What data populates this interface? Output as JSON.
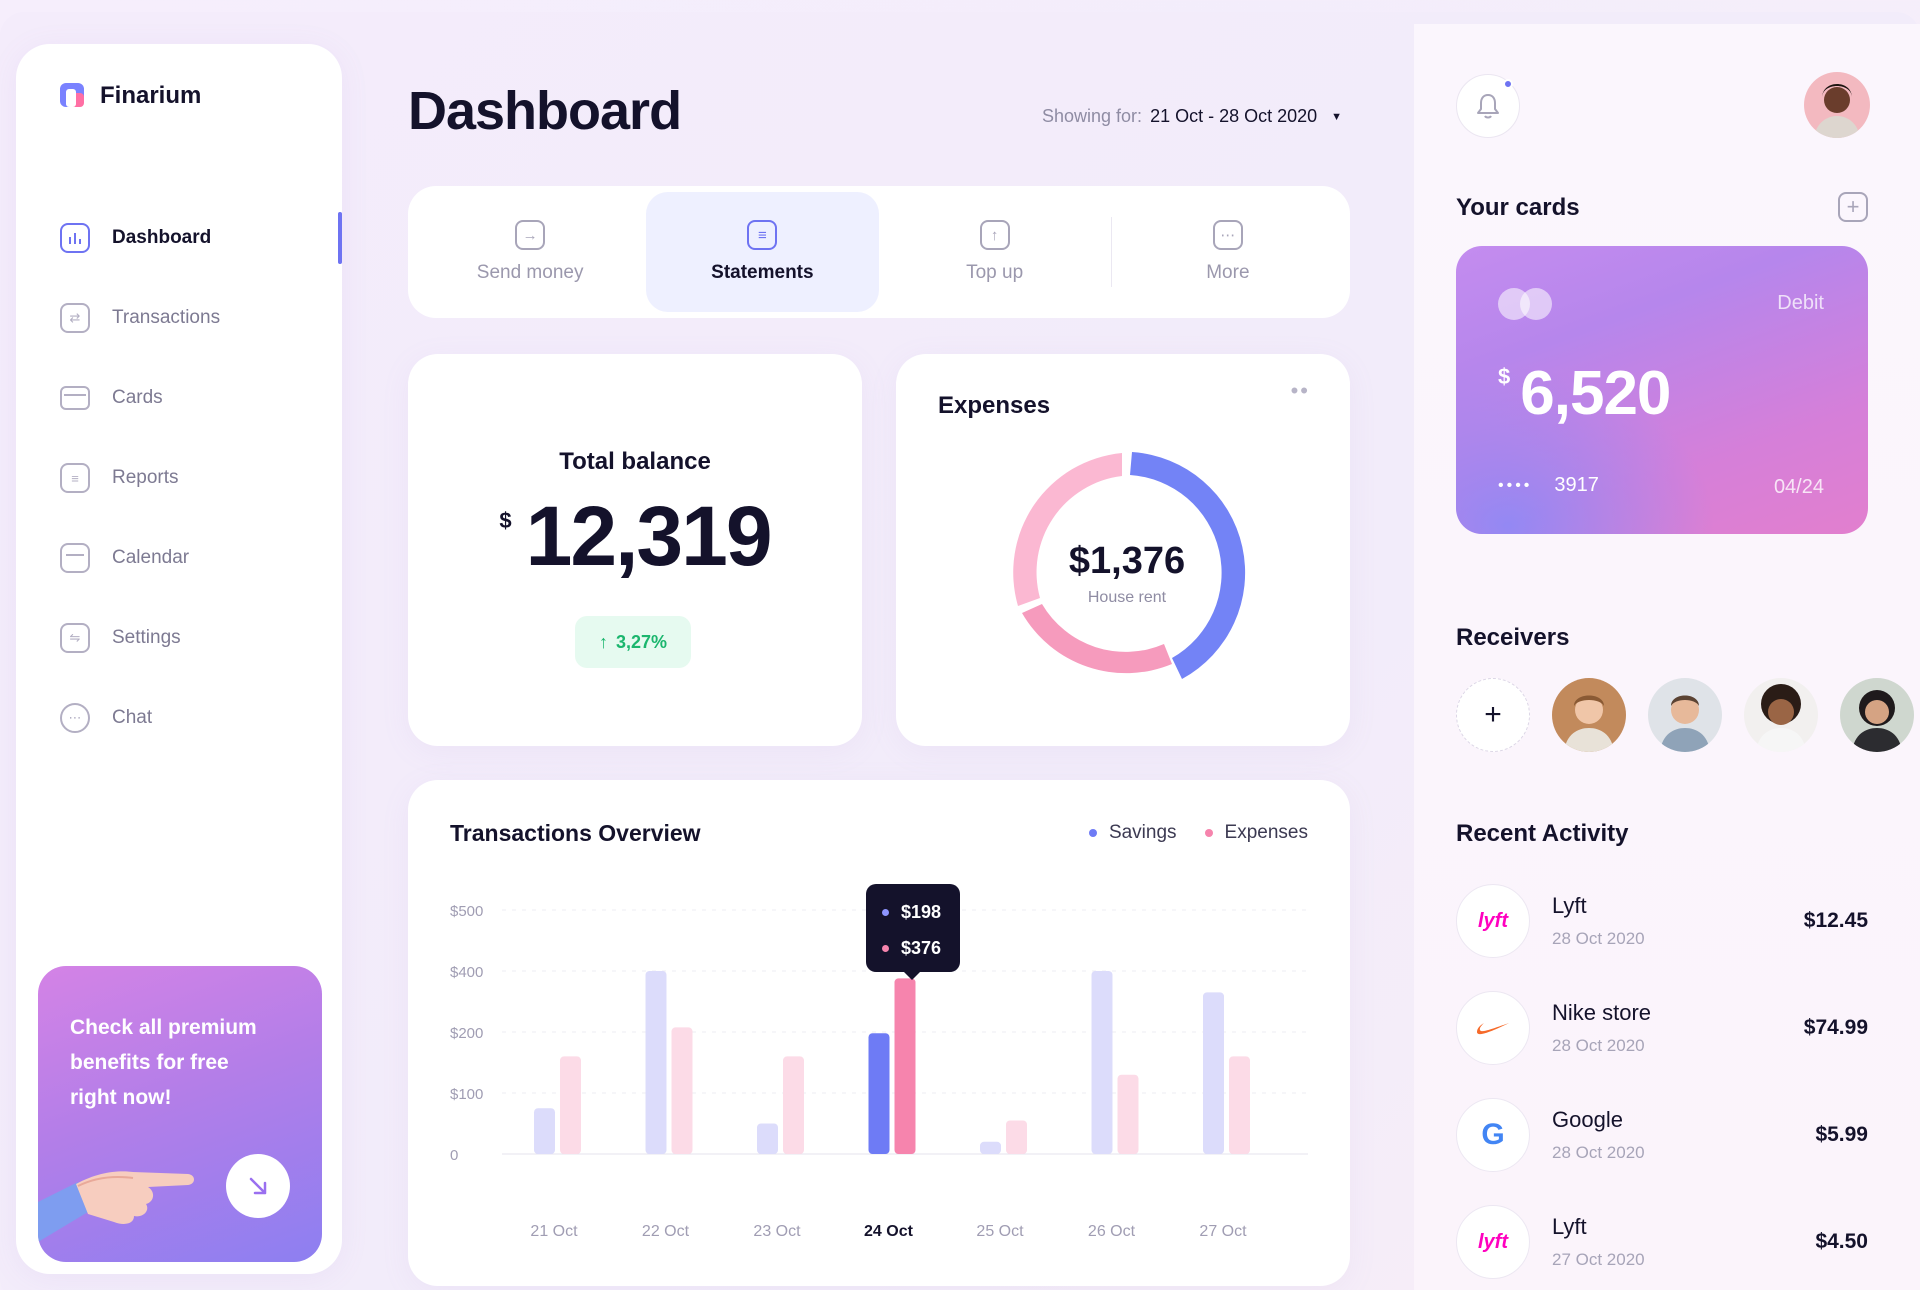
{
  "brand": {
    "name": "Finarium"
  },
  "sidebar": {
    "items": [
      {
        "label": "Dashboard",
        "icon": "bar-chart-icon",
        "active": true
      },
      {
        "label": "Transactions",
        "icon": "swap-icon"
      },
      {
        "label": "Cards",
        "icon": "card-icon"
      },
      {
        "label": "Reports",
        "icon": "document-icon"
      },
      {
        "label": "Calendar",
        "icon": "calendar-icon"
      },
      {
        "label": "Settings",
        "icon": "sliders-icon"
      },
      {
        "label": "Chat",
        "icon": "chat-icon"
      }
    ],
    "promo": {
      "text": "Check all premium benefits for free right now!"
    }
  },
  "header": {
    "title": "Dashboard",
    "showing_label": "Showing for:",
    "range": "21 Oct - 28 Oct 2020"
  },
  "actions": [
    {
      "label": "Send money",
      "icon": "arrow-right-icon"
    },
    {
      "label": "Statements",
      "icon": "statement-icon",
      "active": true
    },
    {
      "label": "Top up",
      "icon": "arrow-up-icon"
    },
    {
      "label": "More",
      "icon": "more-icon"
    }
  ],
  "balance": {
    "title": "Total balance",
    "currency": "$",
    "amount": "12,319",
    "change": "3,27%"
  },
  "expenses": {
    "title": "Expenses",
    "center_value": "$1,376",
    "center_label": "House rent",
    "colors": {
      "blue": "#7383f6",
      "pink": "#f69bbd",
      "light_pink": "#fbb8d2"
    }
  },
  "overview": {
    "title": "Transactions Overview",
    "legend": {
      "savings": "Savings",
      "expenses": "Expenses"
    },
    "tooltip": {
      "savings": "$198",
      "expenses": "$376"
    }
  },
  "chart_data": {
    "type": "bar",
    "title": "Transactions Overview",
    "categories": [
      "21 Oct",
      "22 Oct",
      "23 Oct",
      "24 Oct",
      "25 Oct",
      "26 Oct",
      "27 Oct"
    ],
    "y_ticks": [
      "$500",
      "$400",
      "$200",
      "$100",
      "0"
    ],
    "series": [
      {
        "name": "Savings",
        "values": [
          75,
          400,
          50,
          198,
          20,
          400,
          330
        ],
        "color": "#dcdcfb",
        "highlight": "#6e7bf5"
      },
      {
        "name": "Expenses",
        "values": [
          160,
          215,
          160,
          376,
          55,
          130,
          160
        ],
        "color": "#fcdbe7",
        "highlight": "#f684ad"
      }
    ],
    "highlight_index": 3
  },
  "right": {
    "cards_title": "Your cards",
    "card": {
      "type": "Debit",
      "currency": "$",
      "amount": "6,520",
      "dots": "••••",
      "last4": "3917",
      "expiry": "04/24"
    },
    "receivers_title": "Receivers",
    "receivers_add": "+",
    "activity_title": "Recent Activity",
    "activity": [
      {
        "name": "Lyft",
        "date": "28 Oct 2020",
        "amount": "$12.45",
        "logo": "lyft"
      },
      {
        "name": "Nike store",
        "date": "28 Oct 2020",
        "amount": "$74.99",
        "logo": "nike"
      },
      {
        "name": "Google",
        "date": "28 Oct 2020",
        "amount": "$5.99",
        "logo": "google"
      },
      {
        "name": "Lyft",
        "date": "27 Oct 2020",
        "amount": "$4.50",
        "logo": "lyft"
      }
    ]
  }
}
